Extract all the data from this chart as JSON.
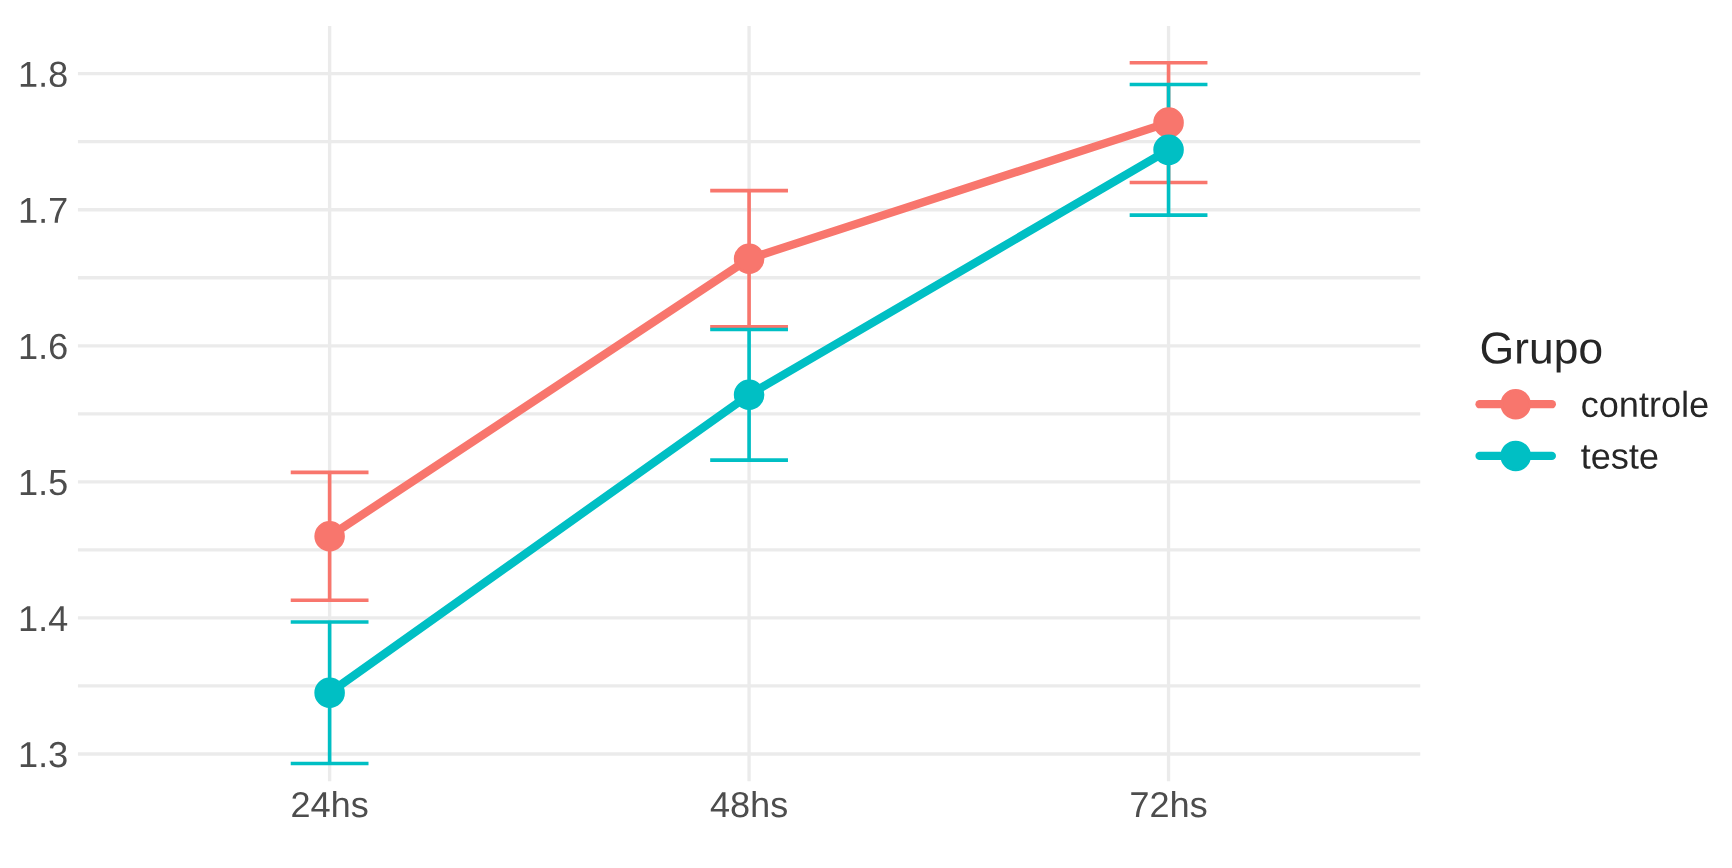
{
  "chart_data": {
    "type": "line",
    "categories": [
      "24hs",
      "48hs",
      "72hs"
    ],
    "series": [
      {
        "name": "controle",
        "color": "#f8766d",
        "values": [
          1.46,
          1.664,
          1.764
        ],
        "errors": [
          0.047,
          0.05,
          0.044
        ]
      },
      {
        "name": "teste",
        "color": "#00bfc4",
        "values": [
          1.345,
          1.564,
          1.744
        ],
        "errors": [
          0.052,
          0.048,
          0.048
        ]
      }
    ],
    "legend_title": "Grupo",
    "legend": "right",
    "marker": "circle",
    "line_style": "solid",
    "grid": true,
    "ylim": [
      1.28,
      1.835
    ],
    "yticks": [
      1.3,
      {
        "value": 1.35,
        "label": null
      },
      1.4,
      {
        "value": 1.45,
        "label": null
      },
      1.5,
      {
        "value": 1.55,
        "label": null
      },
      1.6,
      {
        "value": 1.65,
        "label": null
      },
      1.7,
      {
        "value": 1.75,
        "label": null
      },
      1.8
    ]
  }
}
